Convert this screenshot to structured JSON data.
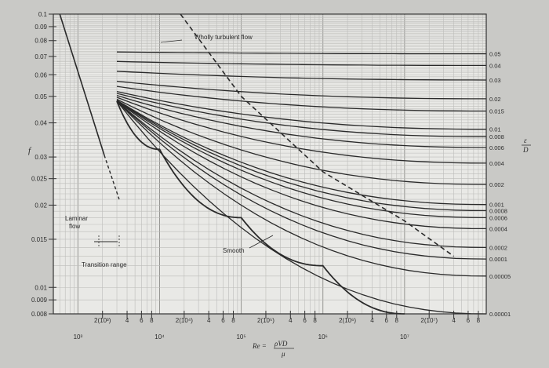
{
  "chart_data": {
    "type": "line",
    "title": "",
    "x_scale": "log",
    "y_scale": "log",
    "xlim": [
      500,
      100000000
    ],
    "ylim": [
      0.008,
      0.1
    ],
    "grid": true,
    "xlabel_lhs": "Re =",
    "xlabel_num": "ρVD",
    "xlabel_den": "μ",
    "ylabel": "f",
    "right_label_num": "ε",
    "right_label_den": "D",
    "y_ticks": [
      {
        "v": 0.1,
        "label": "0.1"
      },
      {
        "v": 0.09,
        "label": "0.09"
      },
      {
        "v": 0.08,
        "label": "0.08"
      },
      {
        "v": 0.07,
        "label": "0.07"
      },
      {
        "v": 0.06,
        "label": "0.06"
      },
      {
        "v": 0.05,
        "label": "0.05"
      },
      {
        "v": 0.04,
        "label": "0.04"
      },
      {
        "v": 0.03,
        "label": "0.03"
      },
      {
        "v": 0.025,
        "label": "0.025"
      },
      {
        "v": 0.02,
        "label": "0.02"
      },
      {
        "v": 0.015,
        "label": "0.015"
      },
      {
        "v": 0.01,
        "label": "0.01"
      },
      {
        "v": 0.009,
        "label": "0.009"
      },
      {
        "v": 0.008,
        "label": "0.008"
      }
    ],
    "x_ticks_upper": [
      {
        "v": 2000,
        "label": "2(10³)"
      },
      {
        "v": 4000,
        "label": "4"
      },
      {
        "v": 6000,
        "label": "6"
      },
      {
        "v": 8000,
        "label": "8"
      },
      {
        "v": 20000,
        "label": "2(10⁴)"
      },
      {
        "v": 40000,
        "label": "4"
      },
      {
        "v": 60000,
        "label": "6"
      },
      {
        "v": 80000,
        "label": "8"
      },
      {
        "v": 200000,
        "label": "2(10⁵)"
      },
      {
        "v": 400000,
        "label": "4"
      },
      {
        "v": 600000,
        "label": "6"
      },
      {
        "v": 800000,
        "label": "8"
      },
      {
        "v": 2000000,
        "label": "2(10⁶)"
      },
      {
        "v": 4000000,
        "label": "4"
      },
      {
        "v": 6000000,
        "label": "6"
      },
      {
        "v": 8000000,
        "label": "8"
      },
      {
        "v": 20000000,
        "label": "2(10⁷)"
      },
      {
        "v": 40000000,
        "label": "4"
      },
      {
        "v": 60000000,
        "label": "6"
      },
      {
        "v": 80000000,
        "label": "8"
      }
    ],
    "x_ticks_lower": [
      {
        "v": 1000,
        "label": "10³"
      },
      {
        "v": 10000,
        "label": "10⁴"
      },
      {
        "v": 100000,
        "label": "10⁵"
      },
      {
        "v": 1000000,
        "label": "10⁶"
      },
      {
        "v": 10000000,
        "label": "10⁷"
      }
    ],
    "series": [
      {
        "name": "0.05",
        "x": [
          3000,
          100000000
        ],
        "y": [
          0.0727,
          0.0716
        ]
      },
      {
        "name": "0.04",
        "x": [
          3000,
          100000000
        ],
        "y": [
          0.0671,
          0.0649
        ]
      },
      {
        "name": "0.03",
        "x": [
          3000,
          100000000
        ],
        "y": [
          0.0618,
          0.0574
        ]
      },
      {
        "name": "0.02",
        "x": [
          3000,
          100000000
        ],
        "y": [
          0.0568,
          0.049
        ]
      },
      {
        "name": "0.015",
        "x": [
          3000,
          100000000
        ],
        "y": [
          0.0544,
          0.0442
        ]
      },
      {
        "name": "0.01",
        "x": [
          3000,
          100000000
        ],
        "y": [
          0.0521,
          0.0379
        ]
      },
      {
        "name": "0.008",
        "x": [
          3000,
          100000000
        ],
        "y": [
          0.0513,
          0.0356
        ]
      },
      {
        "name": "0.006",
        "x": [
          3000,
          100000000
        ],
        "y": [
          0.0504,
          0.0325
        ]
      },
      {
        "name": "0.004",
        "x": [
          3000,
          100000000
        ],
        "y": [
          0.0496,
          0.0285
        ]
      },
      {
        "name": "0.002",
        "x": [
          3000,
          100000000
        ],
        "y": [
          0.0488,
          0.0238
        ]
      },
      {
        "name": "0.001",
        "x": [
          3000,
          100000000
        ],
        "y": [
          0.0484,
          0.0201
        ]
      },
      {
        "name": "0.0008",
        "x": [
          3000,
          100000000
        ],
        "y": [
          0.0483,
          0.0191
        ]
      },
      {
        "name": "0.0006",
        "x": [
          3000,
          100000000
        ],
        "y": [
          0.0482,
          0.018
        ]
      },
      {
        "name": "0.0004",
        "x": [
          3000,
          100000000
        ],
        "y": [
          0.0481,
          0.0164
        ]
      },
      {
        "name": "0.0002",
        "x": [
          3000,
          100000000
        ],
        "y": [
          0.048,
          0.014
        ]
      },
      {
        "name": "0.0001",
        "x": [
          3000,
          100000000
        ],
        "y": [
          0.048,
          0.0127
        ]
      },
      {
        "name": "0.00005",
        "x": [
          3000,
          100000000
        ],
        "y": [
          0.048,
          0.011
        ]
      },
      {
        "name": "0.00001",
        "x": [
          3000,
          100000000
        ],
        "y": [
          0.048,
          0.008
        ]
      },
      {
        "name": "Smooth",
        "x": [
          3000,
          10000,
          100000,
          1000000,
          10000000
        ],
        "y": [
          0.048,
          0.032,
          0.018,
          0.012,
          0.008
        ]
      }
    ],
    "laminar": {
      "name": "Laminar flow",
      "x": [
        600,
        2100
      ],
      "y": [
        0.1,
        0.0305
      ]
    },
    "turbulent_boundary": {
      "x": [
        18000,
        100000,
        1000000,
        10000000,
        40000000
      ],
      "y": [
        0.1,
        0.05,
        0.0265,
        0.0175,
        0.013
      ]
    },
    "annotations": {
      "wholly_turbulent": "Wholly turbulent flow",
      "laminar_1": "Laminar",
      "laminar_2": "flow",
      "transition": "Transition range",
      "smooth": "Smooth"
    }
  }
}
